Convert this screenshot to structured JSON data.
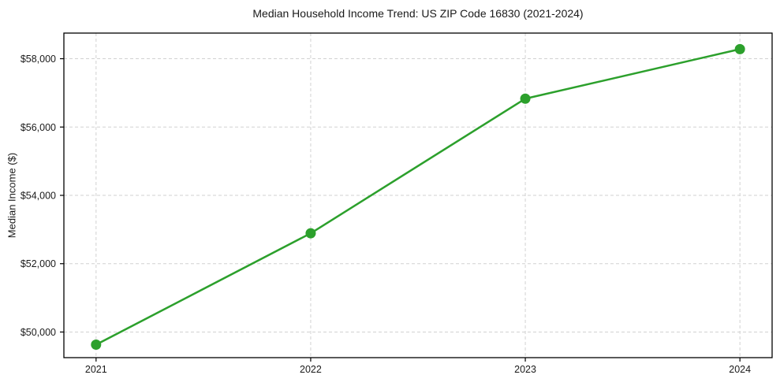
{
  "chart_data": {
    "type": "line",
    "title": "Median Household Income Trend: US ZIP Code 16830 (2021-2024)",
    "xlabel": "",
    "ylabel": "Median Income ($)",
    "x": [
      2021,
      2022,
      2023,
      2024
    ],
    "series": [
      {
        "name": "Median Household Income",
        "values": [
          49630,
          52890,
          56830,
          58280
        ],
        "color": "#2ca02c",
        "marker": "circle"
      }
    ],
    "xticks": [
      2021,
      2022,
      2023,
      2024
    ],
    "xtick_labels": [
      "2021",
      "2022",
      "2023",
      "2024"
    ],
    "yticks": [
      50000,
      52000,
      54000,
      56000,
      58000
    ],
    "ytick_labels": [
      "$50,000",
      "$52,000",
      "$54,000",
      "$56,000",
      "$58,000"
    ],
    "xlim": [
      2020.85,
      2024.15
    ],
    "ylim": [
      49250,
      58750
    ],
    "grid": true,
    "grid_style": "dashed",
    "legend": "none",
    "colors": {
      "line": "#2ca02c",
      "grid": "#d2d2d2",
      "axis": "#000000",
      "text": "#1a1a1a",
      "background": "#ffffff"
    }
  }
}
